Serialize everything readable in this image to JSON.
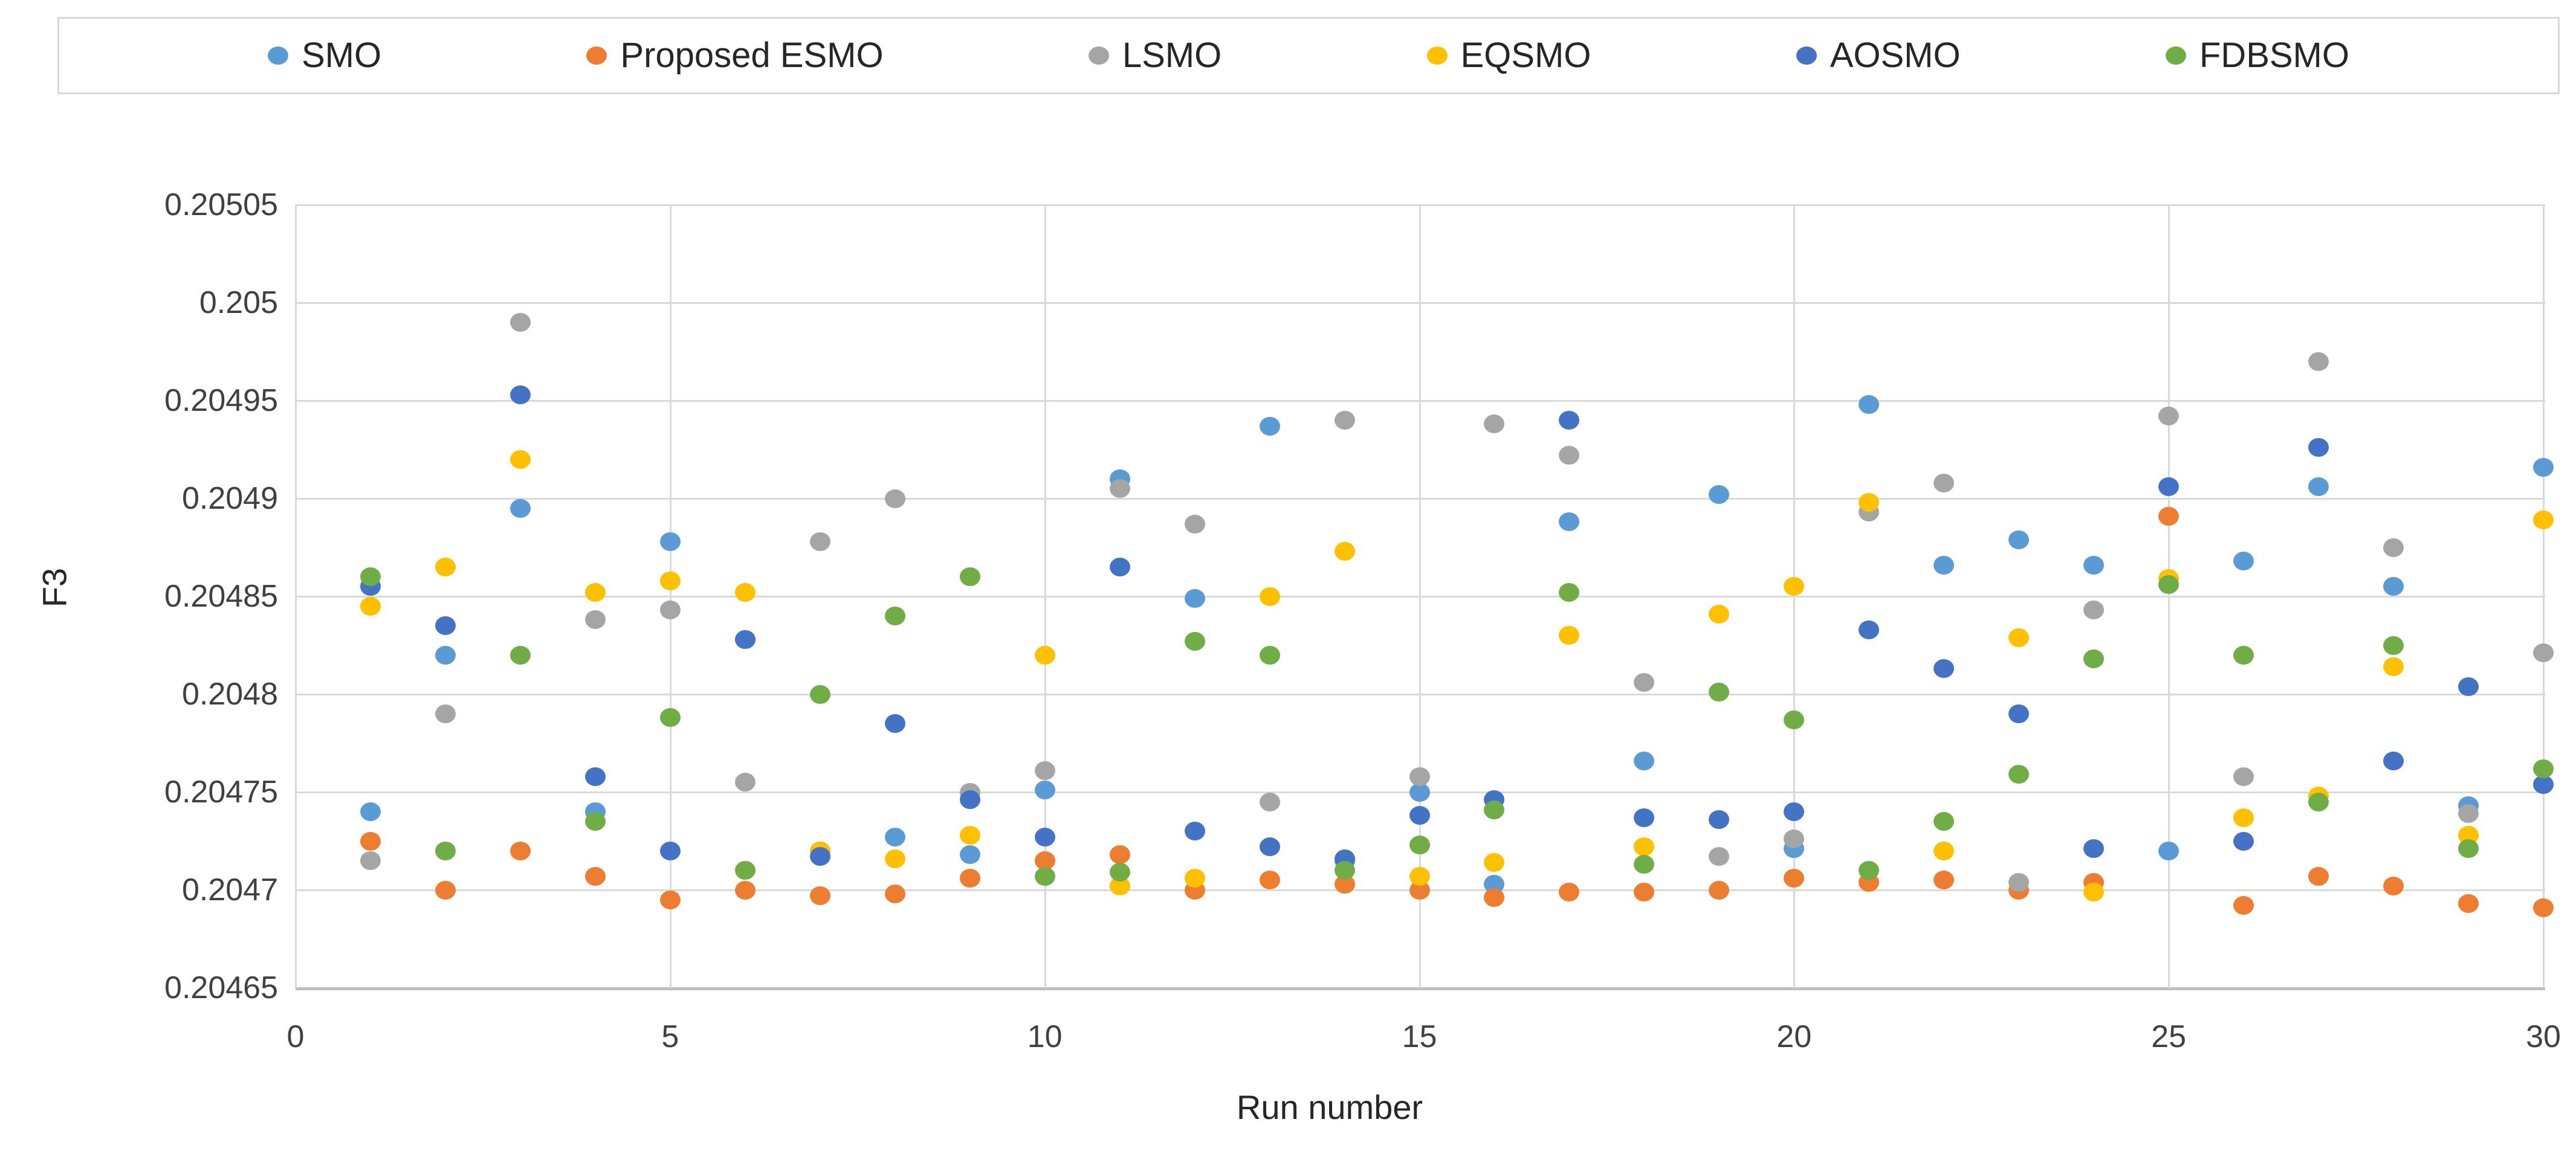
{
  "chart_data": {
    "type": "scatter",
    "title": "",
    "xlabel": "Run number",
    "ylabel": "F3",
    "xlim": [
      0,
      30
    ],
    "ylim": [
      0.20465,
      0.20505
    ],
    "grid": true,
    "legend_position": "top",
    "marker": "circle",
    "xticks": [
      0,
      5,
      10,
      15,
      20,
      25,
      30
    ],
    "ytick_values": [
      0.20465,
      0.2047,
      0.20475,
      0.2048,
      0.20485,
      0.2049,
      0.20495,
      0.205,
      0.20505
    ],
    "ytick_labels": [
      "0.20465",
      "0.2047",
      "0.20475",
      "0.2048",
      "0.20485",
      "0.2049",
      "0.20495",
      "0.205",
      "0.20505"
    ],
    "x": [
      1,
      2,
      3,
      4,
      5,
      6,
      7,
      8,
      9,
      10,
      11,
      12,
      13,
      14,
      15,
      16,
      17,
      18,
      19,
      20,
      21,
      22,
      23,
      24,
      25,
      26,
      27,
      28,
      29,
      30
    ],
    "series": [
      {
        "name": "SMO",
        "color": "#5B9BD5",
        "values": [
          0.20474,
          0.20482,
          0.204895,
          0.20474,
          0.204878,
          0.204828,
          0.20472,
          0.204727,
          0.204718,
          0.204751,
          0.20491,
          0.204849,
          0.204937,
          0.204715,
          0.20475,
          0.204703,
          0.204888,
          0.204766,
          0.204902,
          0.204721,
          0.204948,
          0.204866,
          0.204879,
          0.204866,
          0.20472,
          0.204868,
          0.204906,
          0.204855,
          0.204743,
          0.204916
        ]
      },
      {
        "name": "Proposed ESMO",
        "color": "#ED7D31",
        "values": [
          0.204725,
          0.2047,
          0.20472,
          0.204707,
          0.204695,
          0.2047,
          0.204697,
          0.204698,
          0.204706,
          0.204715,
          0.204718,
          0.2047,
          0.204705,
          0.204703,
          0.2047,
          0.204696,
          0.204699,
          0.204699,
          0.2047,
          0.204706,
          0.204704,
          0.204705,
          0.2047,
          0.204704,
          0.204891,
          0.204692,
          0.204707,
          0.204702,
          0.204693,
          0.204691
        ]
      },
      {
        "name": "LSMO",
        "color": "#A5A5A5",
        "values": [
          0.204715,
          0.20479,
          0.20499,
          0.204838,
          0.204843,
          0.204755,
          0.204878,
          0.2049,
          0.20475,
          0.204761,
          0.204905,
          0.204887,
          0.204745,
          0.20494,
          0.204758,
          0.204938,
          0.204922,
          0.204806,
          0.204717,
          0.204726,
          0.204893,
          0.204908,
          0.204704,
          0.204843,
          0.204942,
          0.204758,
          0.20497,
          0.204875,
          0.204739,
          0.204821
        ]
      },
      {
        "name": "EQSMO",
        "color": "#FFC000",
        "values": [
          0.204845,
          0.204865,
          0.20492,
          0.204852,
          0.204858,
          0.204852,
          0.20472,
          0.204716,
          0.204728,
          0.20482,
          0.204702,
          0.204706,
          0.20485,
          0.204873,
          0.204707,
          0.204714,
          0.20483,
          0.204722,
          0.204841,
          0.204855,
          0.204898,
          0.20472,
          0.204829,
          0.204699,
          0.204859,
          0.204737,
          0.204748,
          0.204814,
          0.204728,
          0.204889
        ]
      },
      {
        "name": "AOSMO",
        "color": "#4472C4",
        "values": [
          0.204855,
          0.204835,
          0.204953,
          0.204758,
          0.20472,
          0.204828,
          0.204717,
          0.204785,
          0.204746,
          0.204727,
          0.204865,
          0.20473,
          0.204722,
          0.204716,
          0.204738,
          0.204746,
          0.20494,
          0.204737,
          0.204736,
          0.20474,
          0.204833,
          0.204813,
          0.20479,
          0.204721,
          0.204906,
          0.204725,
          0.204926,
          0.204766,
          0.204804,
          0.204754
        ]
      },
      {
        "name": "FDBSMO",
        "color": "#70AD47",
        "values": [
          0.20486,
          0.20472,
          0.20482,
          0.204735,
          0.204788,
          0.20471,
          0.2048,
          0.20484,
          0.20486,
          0.204707,
          0.204709,
          0.204827,
          0.20482,
          0.20471,
          0.204723,
          0.204741,
          0.204852,
          0.204713,
          0.204801,
          0.204787,
          0.20471,
          0.204735,
          0.204759,
          0.204818,
          0.204856,
          0.20482,
          0.204745,
          0.204825,
          0.204721,
          0.204762
        ]
      }
    ]
  }
}
